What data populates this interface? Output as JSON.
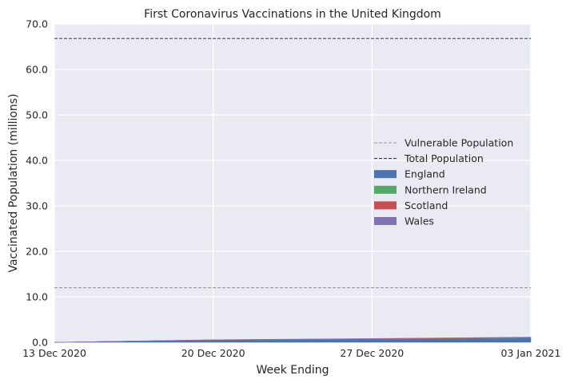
{
  "chart_data": {
    "type": "area",
    "title": "First Coronavirus Vaccinations in the United Kingdom",
    "xlabel": "Week Ending",
    "ylabel": "Vaccinated Population (millions)",
    "x": [
      "13 Dec 2020",
      "20 Dec 2020",
      "27 Dec 2020",
      "03 Jan 2021"
    ],
    "x_tick_labels": [
      "13 Dec 2020",
      "20 Dec 2020",
      "27 Dec 2020",
      "03 Jan 2021"
    ],
    "ylim": [
      0,
      70
    ],
    "y_ticks": [
      0,
      10,
      20,
      30,
      40,
      50,
      60,
      70
    ],
    "y_tick_labels": [
      "0.0",
      "10.0",
      "20.0",
      "30.0",
      "40.0",
      "50.0",
      "60.0",
      "70.0"
    ],
    "stacked": true,
    "grid": true,
    "legend_position": "center-right",
    "series": [
      {
        "name": "England",
        "color": "#4c72b0",
        "values": [
          0.0,
          0.45,
          0.65,
          0.9
        ]
      },
      {
        "name": "Northern Ireland",
        "color": "#55a868",
        "values": [
          0.0,
          0.02,
          0.03,
          0.05
        ]
      },
      {
        "name": "Scotland",
        "color": "#c44e52",
        "values": [
          0.0,
          0.06,
          0.09,
          0.12
        ]
      },
      {
        "name": "Wales",
        "color": "#8172b3",
        "values": [
          0.0,
          0.04,
          0.06,
          0.08
        ]
      }
    ],
    "reference_lines": [
      {
        "name": "Vulnerable Population",
        "value": 12.0,
        "color": "#999999",
        "style": "dashed"
      },
      {
        "name": "Total Population",
        "value": 66.8,
        "color": "#3a3a4a",
        "style": "dashed"
      }
    ]
  }
}
